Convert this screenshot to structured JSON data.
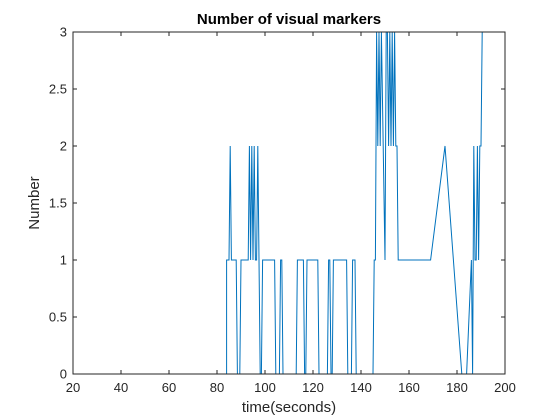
{
  "chart_data": {
    "type": "line",
    "title": "Number of visual markers",
    "xlabel": "time(seconds)",
    "ylabel": "Number",
    "xlim": [
      20,
      200
    ],
    "ylim": [
      0,
      3
    ],
    "xticks": [
      "20",
      "40",
      "60",
      "80",
      "100",
      "120",
      "140",
      "160",
      "180",
      "200"
    ],
    "yticks": [
      "0",
      "0.5",
      "1",
      "1.5",
      "2",
      "2.5",
      "3"
    ],
    "grid": false,
    "line_color": "#0072BD",
    "series": [
      {
        "x": [
          31,
          84,
          84,
          85,
          85.5,
          86,
          86.5,
          88,
          88.5,
          89.5,
          90,
          93,
          93.5,
          94,
          94.5,
          95,
          95.5,
          96,
          96.5,
          97,
          97.5,
          98,
          98.5,
          99,
          104,
          104.5,
          106,
          106.5,
          107,
          107.5,
          113,
          113.5,
          116,
          116.5,
          117,
          117.5,
          122,
          122.5,
          126,
          126.5,
          127,
          127.5,
          128,
          128.5,
          134,
          134.5,
          136,
          136.5,
          137.5,
          138,
          145,
          145.5,
          146,
          146.5,
          147,
          147.5,
          148,
          148.5,
          150,
          150.5,
          151,
          151.5,
          152,
          152.5,
          153,
          153.5,
          154,
          154.5,
          155,
          155.5,
          156,
          156.5,
          169,
          175,
          182,
          184,
          186,
          186.5,
          187,
          187.5,
          188,
          188.5,
          189,
          189.5,
          190,
          190.5,
          191,
          192
        ],
        "y": [
          0,
          0,
          1,
          1,
          2,
          1,
          1,
          1,
          0,
          0,
          1,
          1,
          2,
          1,
          2,
          1,
          2,
          1,
          1,
          2,
          1,
          0,
          0,
          1,
          1,
          0,
          0,
          1,
          1,
          0,
          0,
          1,
          1,
          0,
          0,
          1,
          1,
          0,
          0,
          1,
          1,
          0,
          0,
          1,
          1,
          0,
          0,
          1,
          1,
          0,
          0,
          1,
          1,
          3,
          2,
          3,
          2,
          3,
          1,
          3,
          3,
          2,
          3,
          2,
          3,
          2,
          3,
          2,
          2,
          1,
          1,
          1,
          1,
          2,
          0,
          0,
          1,
          0,
          2,
          1,
          1,
          2,
          1,
          2,
          2,
          3,
          3,
          3
        ]
      }
    ]
  }
}
